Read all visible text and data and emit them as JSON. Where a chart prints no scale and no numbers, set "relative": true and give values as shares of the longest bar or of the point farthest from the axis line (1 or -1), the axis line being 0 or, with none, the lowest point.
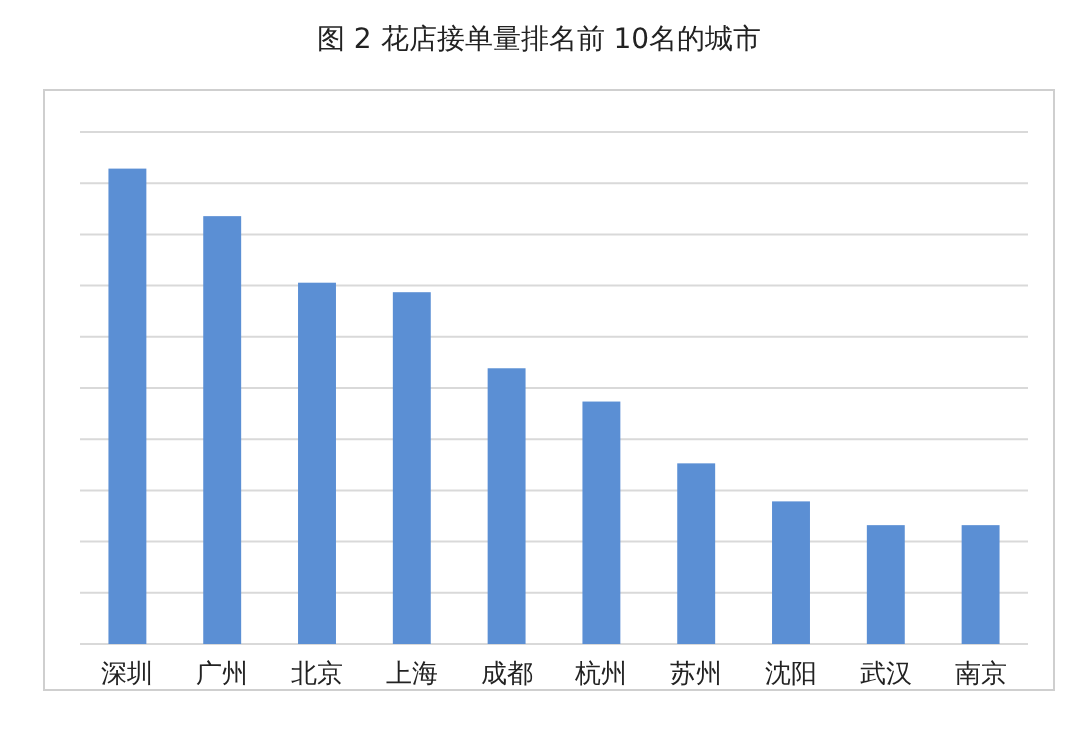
{
  "chart_data": {
    "type": "bar",
    "title": "图 2  花店接单量排名前 10名的城市",
    "relative": true,
    "grid": "y",
    "color": "#5b8fd4",
    "categories": [
      "深圳",
      "广州",
      "北京",
      "上海",
      "成都",
      "杭州",
      "苏州",
      "沈阳",
      "武汉",
      "南京"
    ],
    "values": [
      1,
      0.9,
      0.76,
      0.74,
      0.58,
      0.51,
      0.38,
      0.3,
      0.25,
      0.25
    ]
  }
}
